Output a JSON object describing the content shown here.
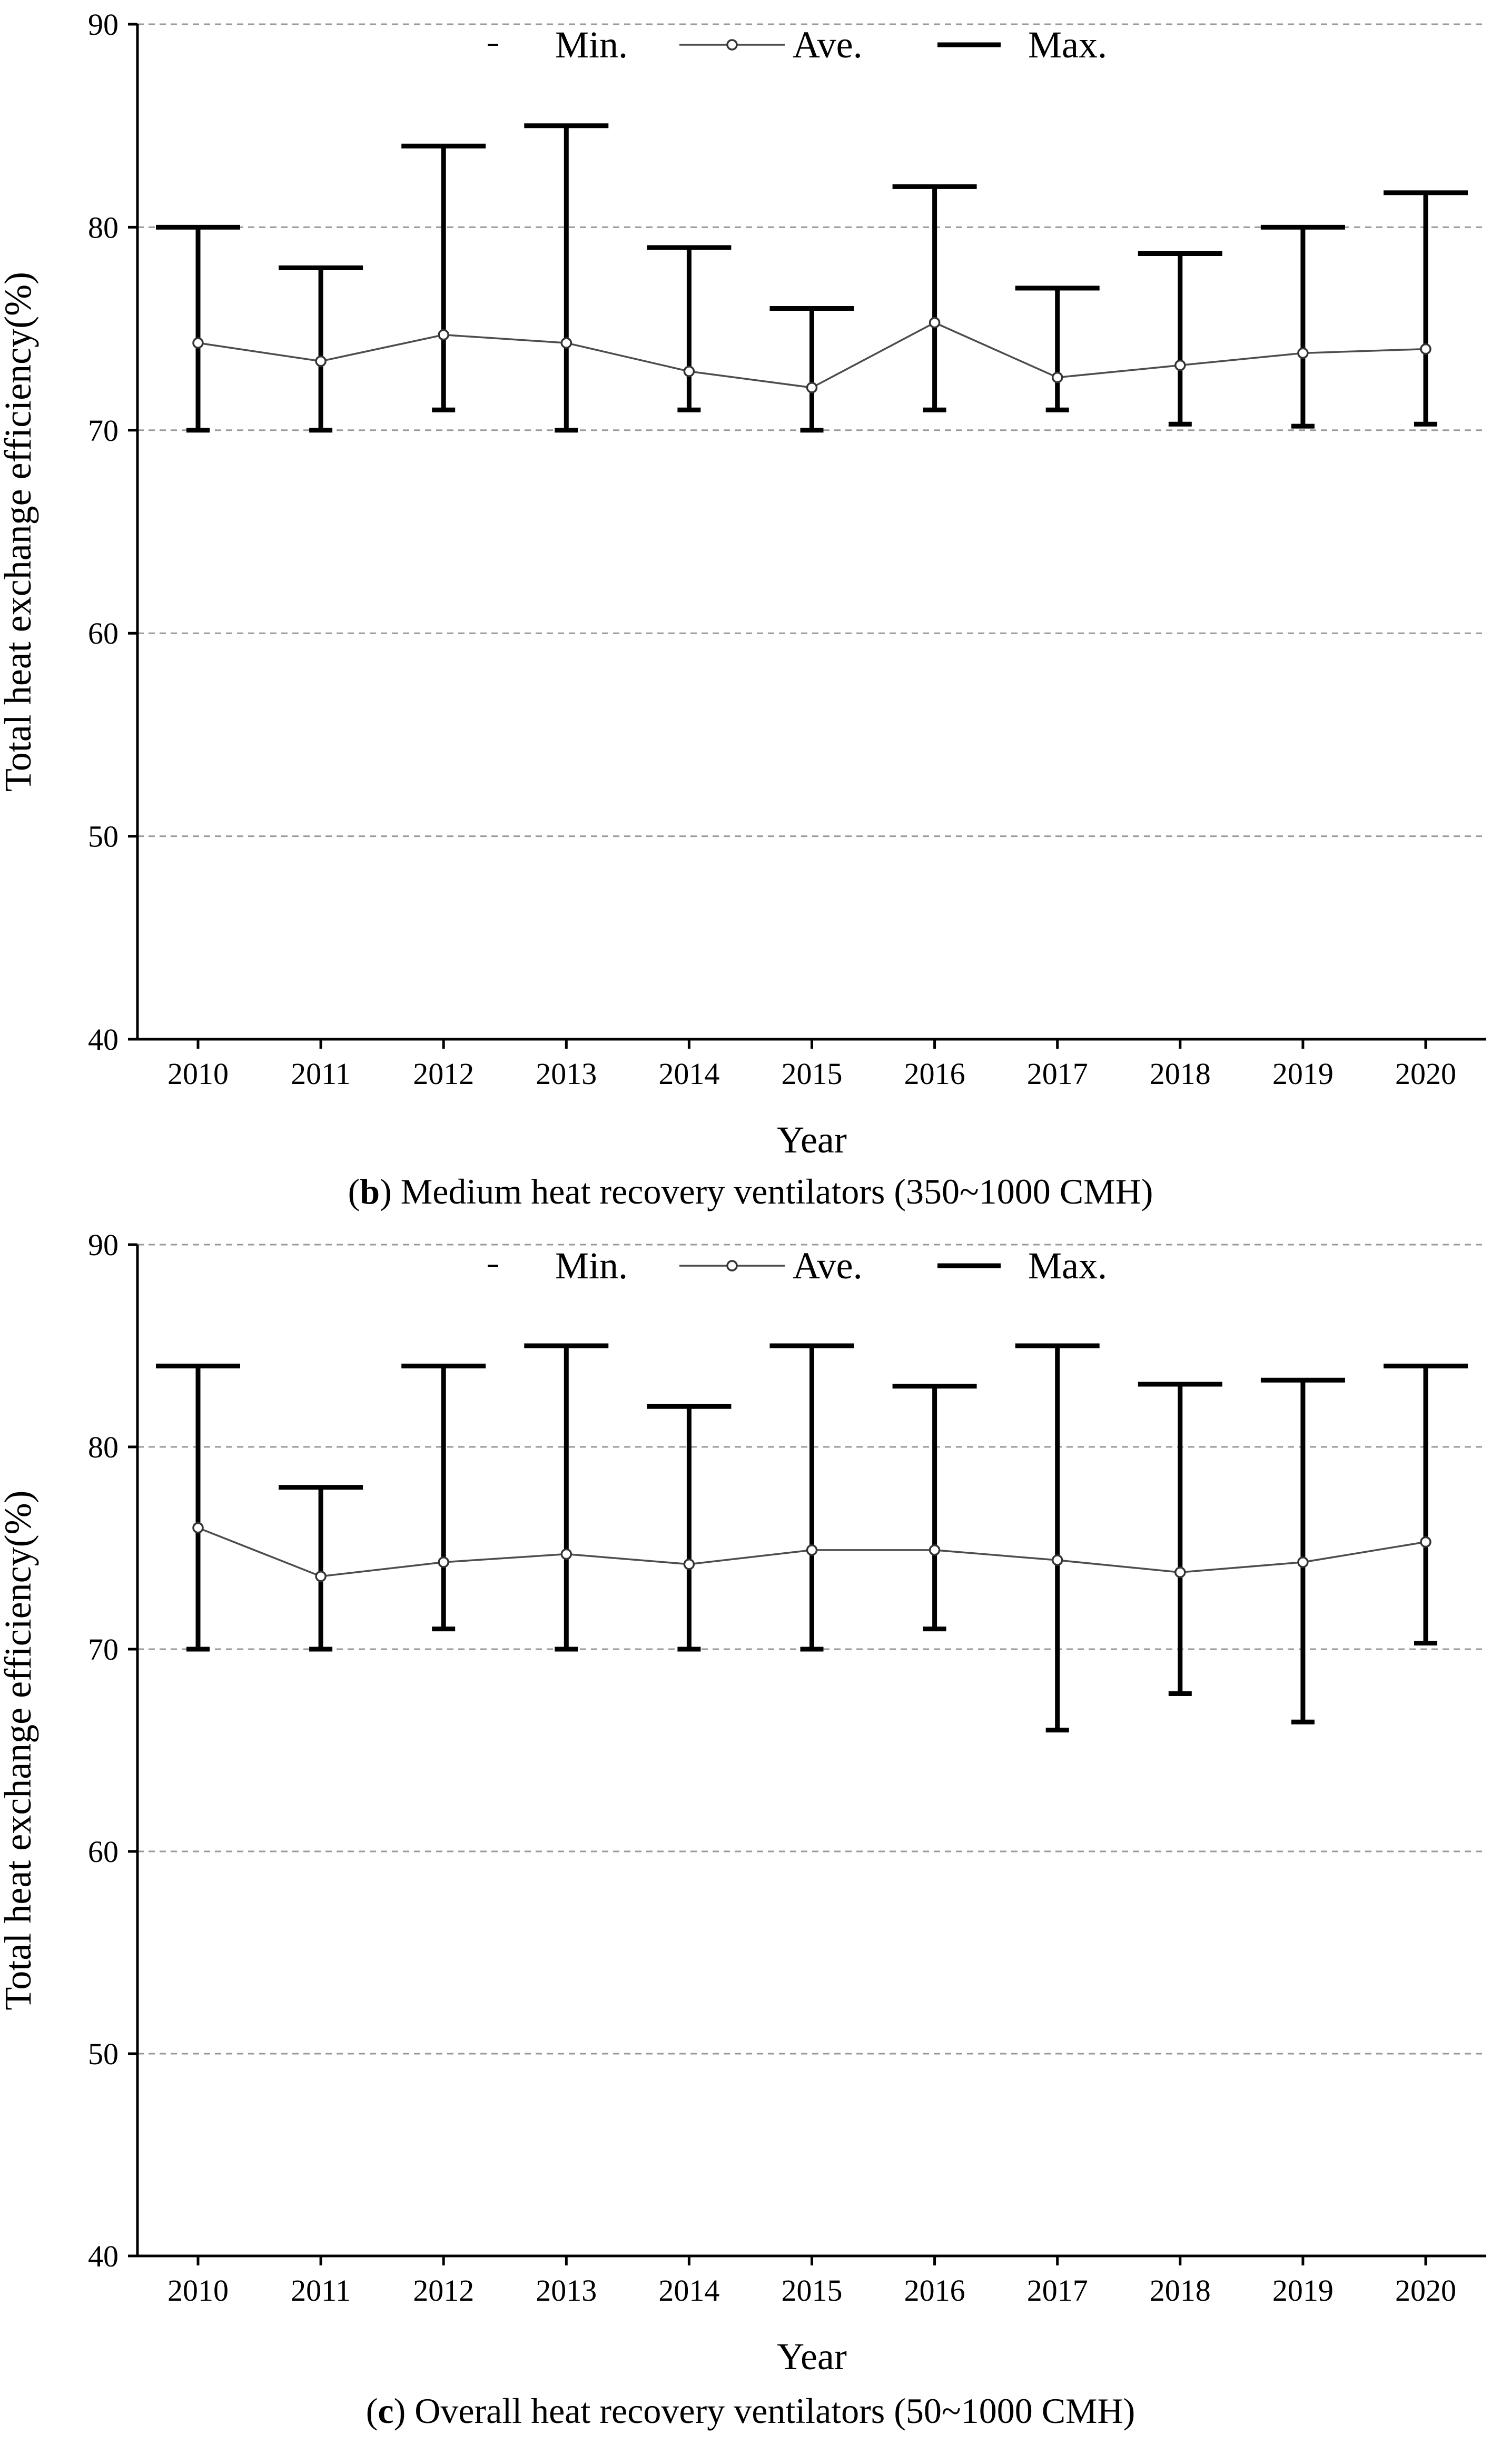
{
  "chart_data": [
    {
      "type": "line",
      "panel_label": "b",
      "caption": "Medium heat recovery ventilators (350~1000 CMH)",
      "xlabel": "Year",
      "ylabel": "Total heat exchange efficiency(%)",
      "ylim": [
        40,
        90
      ],
      "yticks": [
        40,
        50,
        60,
        70,
        80,
        90
      ],
      "grid": "dashed horizontal",
      "legend": [
        "Min.",
        "Ave.",
        "Max."
      ],
      "legend_position": "top",
      "categories": [
        "2010",
        "2011",
        "2012",
        "2013",
        "2014",
        "2015",
        "2016",
        "2017",
        "2018",
        "2019",
        "2020"
      ],
      "series": [
        {
          "name": "Min.",
          "values": [
            70,
            70,
            71,
            70,
            71,
            70,
            71,
            71,
            70.3,
            70.2,
            70.3
          ]
        },
        {
          "name": "Ave.",
          "values": [
            74.3,
            73.4,
            74.7,
            74.3,
            72.9,
            72.1,
            75.3,
            72.6,
            73.2,
            73.8,
            74.0
          ]
        },
        {
          "name": "Max.",
          "values": [
            80,
            78,
            84,
            85,
            79,
            76,
            82,
            77,
            78.7,
            80,
            81.7
          ]
        }
      ]
    },
    {
      "type": "line",
      "panel_label": "c",
      "caption": "Overall heat recovery ventilators (50~1000 CMH)",
      "xlabel": "Year",
      "ylabel": "Total heat exchange efficiency(%)",
      "ylim": [
        40,
        90
      ],
      "yticks": [
        40,
        50,
        60,
        70,
        80,
        90
      ],
      "grid": "dashed horizontal",
      "legend": [
        "Min.",
        "Ave.",
        "Max."
      ],
      "legend_position": "top",
      "categories": [
        "2010",
        "2011",
        "2012",
        "2013",
        "2014",
        "2015",
        "2016",
        "2017",
        "2018",
        "2019",
        "2020"
      ],
      "series": [
        {
          "name": "Min.",
          "values": [
            70,
            70,
            71,
            70,
            70,
            70,
            71,
            66,
            67.8,
            66.4,
            70.3
          ]
        },
        {
          "name": "Ave.",
          "values": [
            76.0,
            73.6,
            74.3,
            74.7,
            74.2,
            74.9,
            74.9,
            74.4,
            73.8,
            74.3,
            75.3
          ]
        },
        {
          "name": "Max.",
          "values": [
            84,
            78,
            84,
            85,
            82,
            85,
            83,
            85,
            83.1,
            83.3,
            84.0
          ]
        }
      ]
    }
  ]
}
